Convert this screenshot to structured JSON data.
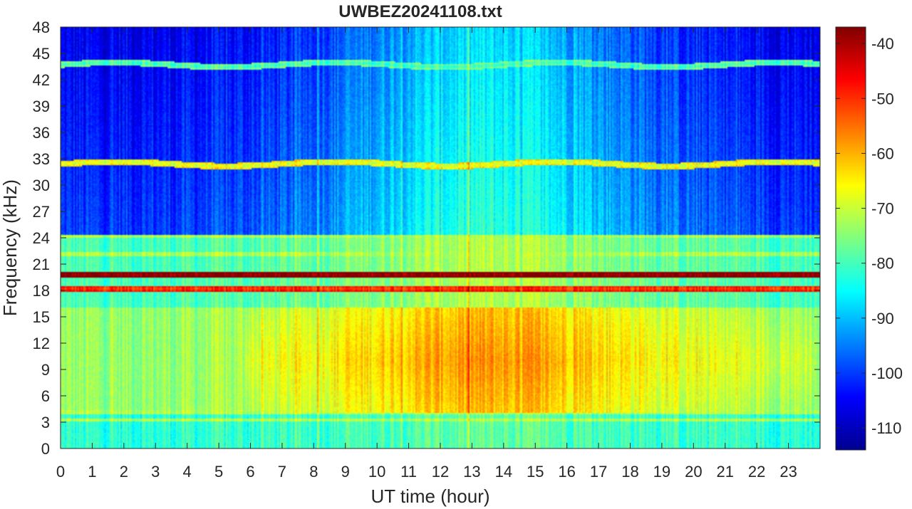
{
  "chart_data": {
    "type": "heatmap",
    "title": "UWBEZ20241108.txt",
    "xlabel": "UT time (hour)",
    "ylabel": "Frequency (kHz)",
    "xlim": [
      0,
      24
    ],
    "ylim": [
      0,
      48
    ],
    "x_ticks": [
      0,
      1,
      2,
      3,
      4,
      5,
      6,
      7,
      8,
      9,
      10,
      11,
      12,
      13,
      14,
      15,
      16,
      17,
      18,
      19,
      20,
      21,
      22,
      23
    ],
    "y_ticks": [
      0,
      3,
      6,
      9,
      12,
      15,
      18,
      21,
      24,
      27,
      30,
      33,
      36,
      39,
      42,
      45,
      48
    ],
    "colorbar": {
      "colormap": "jet",
      "clim": [
        -114,
        -37
      ],
      "ticks": [
        -40,
        -50,
        -60,
        -70,
        -80,
        -90,
        -100,
        -110
      ]
    },
    "features": [
      {
        "label": "transmitter line",
        "freq_khz": 19.8,
        "level_db": -40
      },
      {
        "label": "transmitter line",
        "freq_khz": 18.2,
        "level_db": -52
      },
      {
        "label": "tone band",
        "freq_khz": 32.4,
        "level_db": -70
      },
      {
        "label": "tone band",
        "freq_khz": 43.7,
        "level_db": -82
      },
      {
        "label": "daytime broadband enhancement",
        "time_range_h": [
          5.8,
          23.8
        ],
        "freq_range_khz": [
          4,
          16
        ],
        "peak_level_db": -60
      }
    ],
    "grid": false,
    "colors": {
      "axis": "#262626"
    }
  }
}
